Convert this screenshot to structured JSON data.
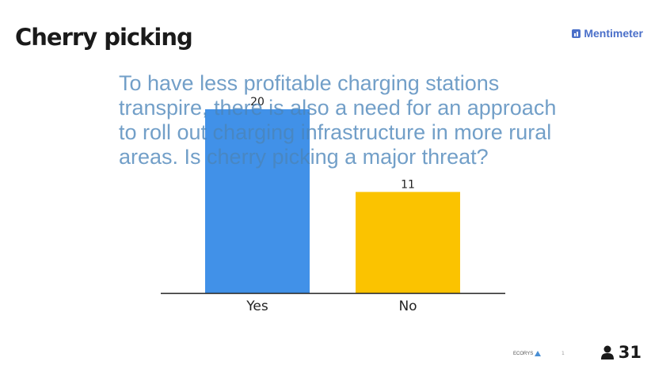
{
  "slide": {
    "title": "Cherry picking",
    "brand": "Mentimeter",
    "question": "To have less profitable charging stations transpire, there is also a need for an approach to roll out charging infrastructure in more rural areas. Is cherry picking a major threat?",
    "footer_logo": "ECORYS",
    "page_marker": "1",
    "participant_count": "31"
  },
  "chart_data": {
    "type": "bar",
    "categories": [
      "Yes",
      "No"
    ],
    "values": [
      20,
      11
    ],
    "colors": [
      "#4191e8",
      "#fbc300"
    ],
    "title": "",
    "xlabel": "",
    "ylabel": "",
    "ylim": [
      0,
      20
    ],
    "grid": false
  }
}
